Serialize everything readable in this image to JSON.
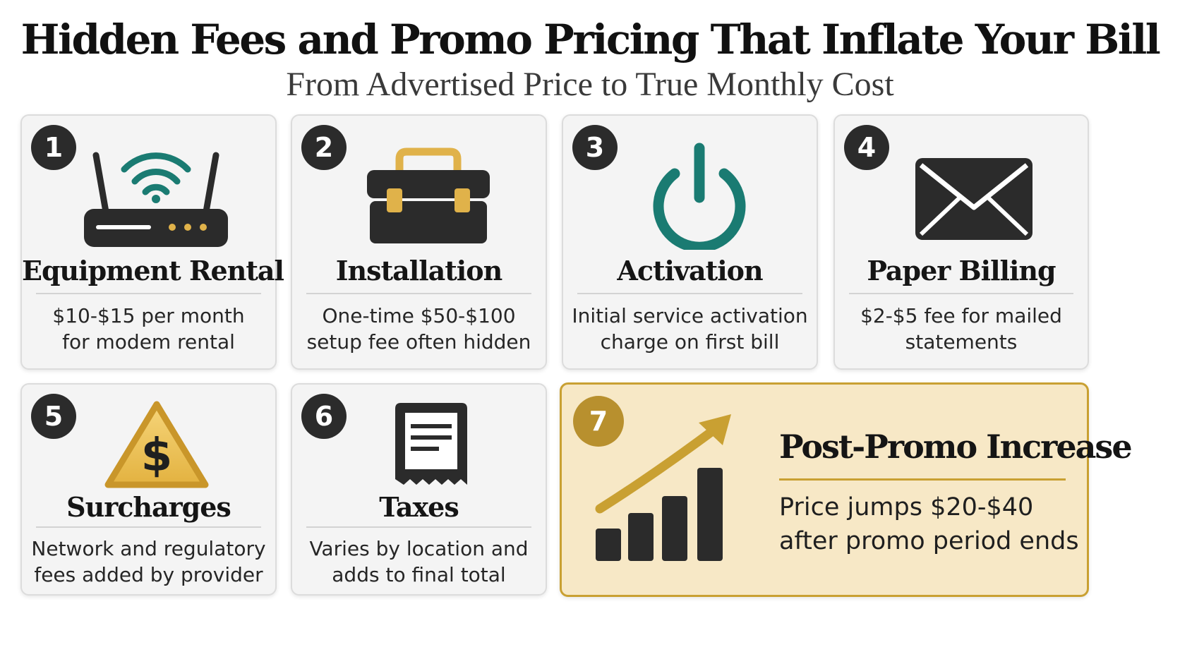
{
  "header": {
    "title": "Hidden Fees and Promo Pricing That Inflate Your Bill",
    "subtitle": "From Advertised Price to True Monthly Cost"
  },
  "colors": {
    "teal": "#1a7b72",
    "gold": "#c9a032",
    "dark": "#2b2b2b",
    "highlight_bg": "#f7e8c6"
  },
  "cards": [
    {
      "number": "1",
      "title": "Equipment Rental",
      "desc_line1": "$10-$15 per month",
      "desc_line2": "for modem rental",
      "icon": "router-wifi-icon"
    },
    {
      "number": "2",
      "title": "Installation",
      "desc_line1": "One-time $50-$100",
      "desc_line2": "setup fee often hidden",
      "icon": "toolbox-icon"
    },
    {
      "number": "3",
      "title": "Activation",
      "desc_line1": "Initial service activation",
      "desc_line2": "charge on first bill",
      "icon": "power-icon"
    },
    {
      "number": "4",
      "title": "Paper Billing",
      "desc_line1": "$2-$5 fee for mailed",
      "desc_line2": "statements",
      "icon": "envelope-icon"
    },
    {
      "number": "5",
      "title": "Surcharges",
      "desc_line1": "Network and regulatory",
      "desc_line2": "fees added by provider",
      "icon": "dollar-warning-icon"
    },
    {
      "number": "6",
      "title": "Taxes",
      "desc_line1": "Varies by location and",
      "desc_line2": "adds to final total",
      "icon": "receipt-icon"
    },
    {
      "number": "7",
      "title": "Post-Promo Increase",
      "desc_line1": "Price jumps $20-$40",
      "desc_line2": "after promo period ends",
      "icon": "rising-chart-icon"
    }
  ]
}
